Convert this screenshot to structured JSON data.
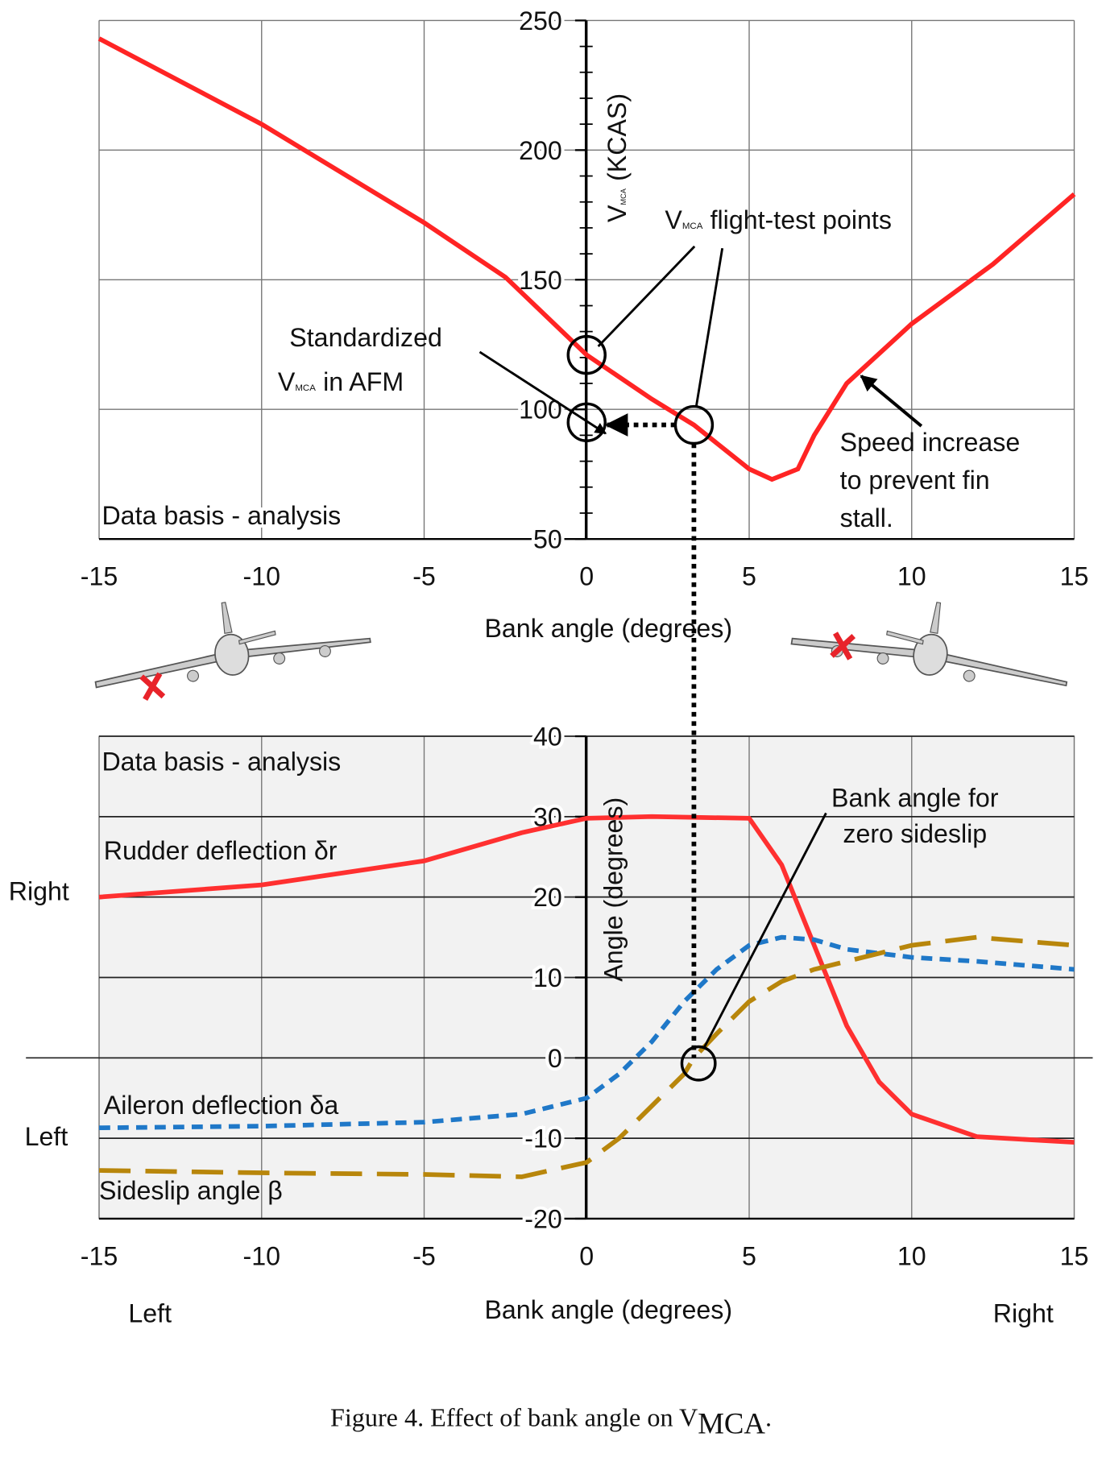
{
  "chart_data": [
    {
      "type": "line",
      "y_label": {
        "main": "V",
        "sub": "MCA",
        "rest": "(KCAS)"
      },
      "x_label": "Bank angle (degrees)",
      "xlim": [
        -15,
        15
      ],
      "xticks": [
        -15,
        -10,
        -5,
        0,
        5,
        10,
        15
      ],
      "ylim": [
        50,
        250
      ],
      "yticks": [
        50,
        100,
        150,
        200,
        250
      ],
      "yminorticks": [
        60,
        70,
        80,
        90,
        110,
        120,
        130,
        140,
        160,
        170,
        180,
        190,
        210,
        220,
        230,
        240
      ],
      "grid": true,
      "series": [
        {
          "color": "#ff2424",
          "x": [
            -15,
            -10,
            -5,
            -2.5,
            0,
            2,
            3.3,
            4,
            5,
            5.7,
            6.5,
            7,
            8,
            10,
            12.5,
            15
          ],
          "values": [
            243,
            210,
            172,
            151,
            121,
            104,
            94,
            87,
            77,
            73,
            77,
            90,
            110,
            133,
            156,
            183
          ]
        }
      ],
      "note": "Data basis - analysis",
      "test_points_label": {
        "main": "V",
        "sub": "MCA",
        "rest": "flight-test points"
      },
      "test_points": {
        "x": [
          0,
          3.3
        ],
        "y": [
          121,
          94
        ]
      },
      "standardized_label": {
        "line1": "Standardized",
        "main": "V",
        "sub": "MCA",
        "rest": "in AFM"
      },
      "standardized_point": {
        "x": 0,
        "y": 95
      },
      "fin_stall_note": [
        "Speed increase",
        "to prevent fin",
        "stall."
      ]
    },
    {
      "type": "line",
      "y_label": "Angle  (degrees)",
      "x_label": "Bank angle (degrees)",
      "xlim": [
        -15,
        15
      ],
      "xticks": [
        -15,
        -10,
        -5,
        0,
        5,
        10,
        15
      ],
      "ylim": [
        -20,
        40
      ],
      "yticks": [
        -20,
        -10,
        0,
        10,
        20,
        30,
        40
      ],
      "grid": true,
      "series": [
        {
          "name": "Rudder deflection δr",
          "color": "#ff3030",
          "dash": "solid",
          "x": [
            -15,
            -10,
            -5,
            -2,
            0,
            2,
            5,
            6,
            7,
            8,
            9,
            10,
            12,
            15
          ],
          "values": [
            20,
            21.5,
            24.5,
            28,
            29.8,
            30,
            29.8,
            24,
            14,
            4,
            -3,
            -7,
            -9.8,
            -10.5
          ]
        },
        {
          "name": "Aileron deflection δa",
          "color": "#1f78c8",
          "dash": "short",
          "x": [
            -15,
            -10,
            -5,
            -2,
            0,
            1,
            2,
            3,
            4,
            5,
            6,
            7,
            8,
            10,
            12,
            15
          ],
          "values": [
            -8.7,
            -8.5,
            -8,
            -7,
            -5,
            -2,
            2,
            7,
            11,
            14,
            15,
            14.7,
            13.5,
            12.5,
            12,
            11
          ]
        },
        {
          "name": "Sideslip angle β",
          "color": "#b8860b",
          "dash": "long",
          "x": [
            -15,
            -10,
            -5,
            -2,
            0,
            1,
            2,
            3,
            3.3,
            4,
            5,
            6,
            7,
            8,
            10,
            12,
            15
          ],
          "values": [
            -14,
            -14.3,
            -14.5,
            -14.8,
            -13,
            -10,
            -6,
            -2,
            0,
            3,
            7,
            9.5,
            11,
            12,
            14,
            15,
            14
          ]
        }
      ],
      "note": "Data basis - analysis",
      "zero_sideslip_label": [
        "Bank angle for",
        "zero sideslip"
      ],
      "zero_sideslip_point": {
        "x": 3.3,
        "y": 0
      },
      "side_labels": {
        "right": "Right",
        "left": "Left"
      },
      "x_end_labels": {
        "left": "Left",
        "right": "Right"
      }
    }
  ],
  "caption": {
    "main": "Figure 4. Effect of bank angle on V",
    "sub": "MCA",
    "end": "."
  }
}
